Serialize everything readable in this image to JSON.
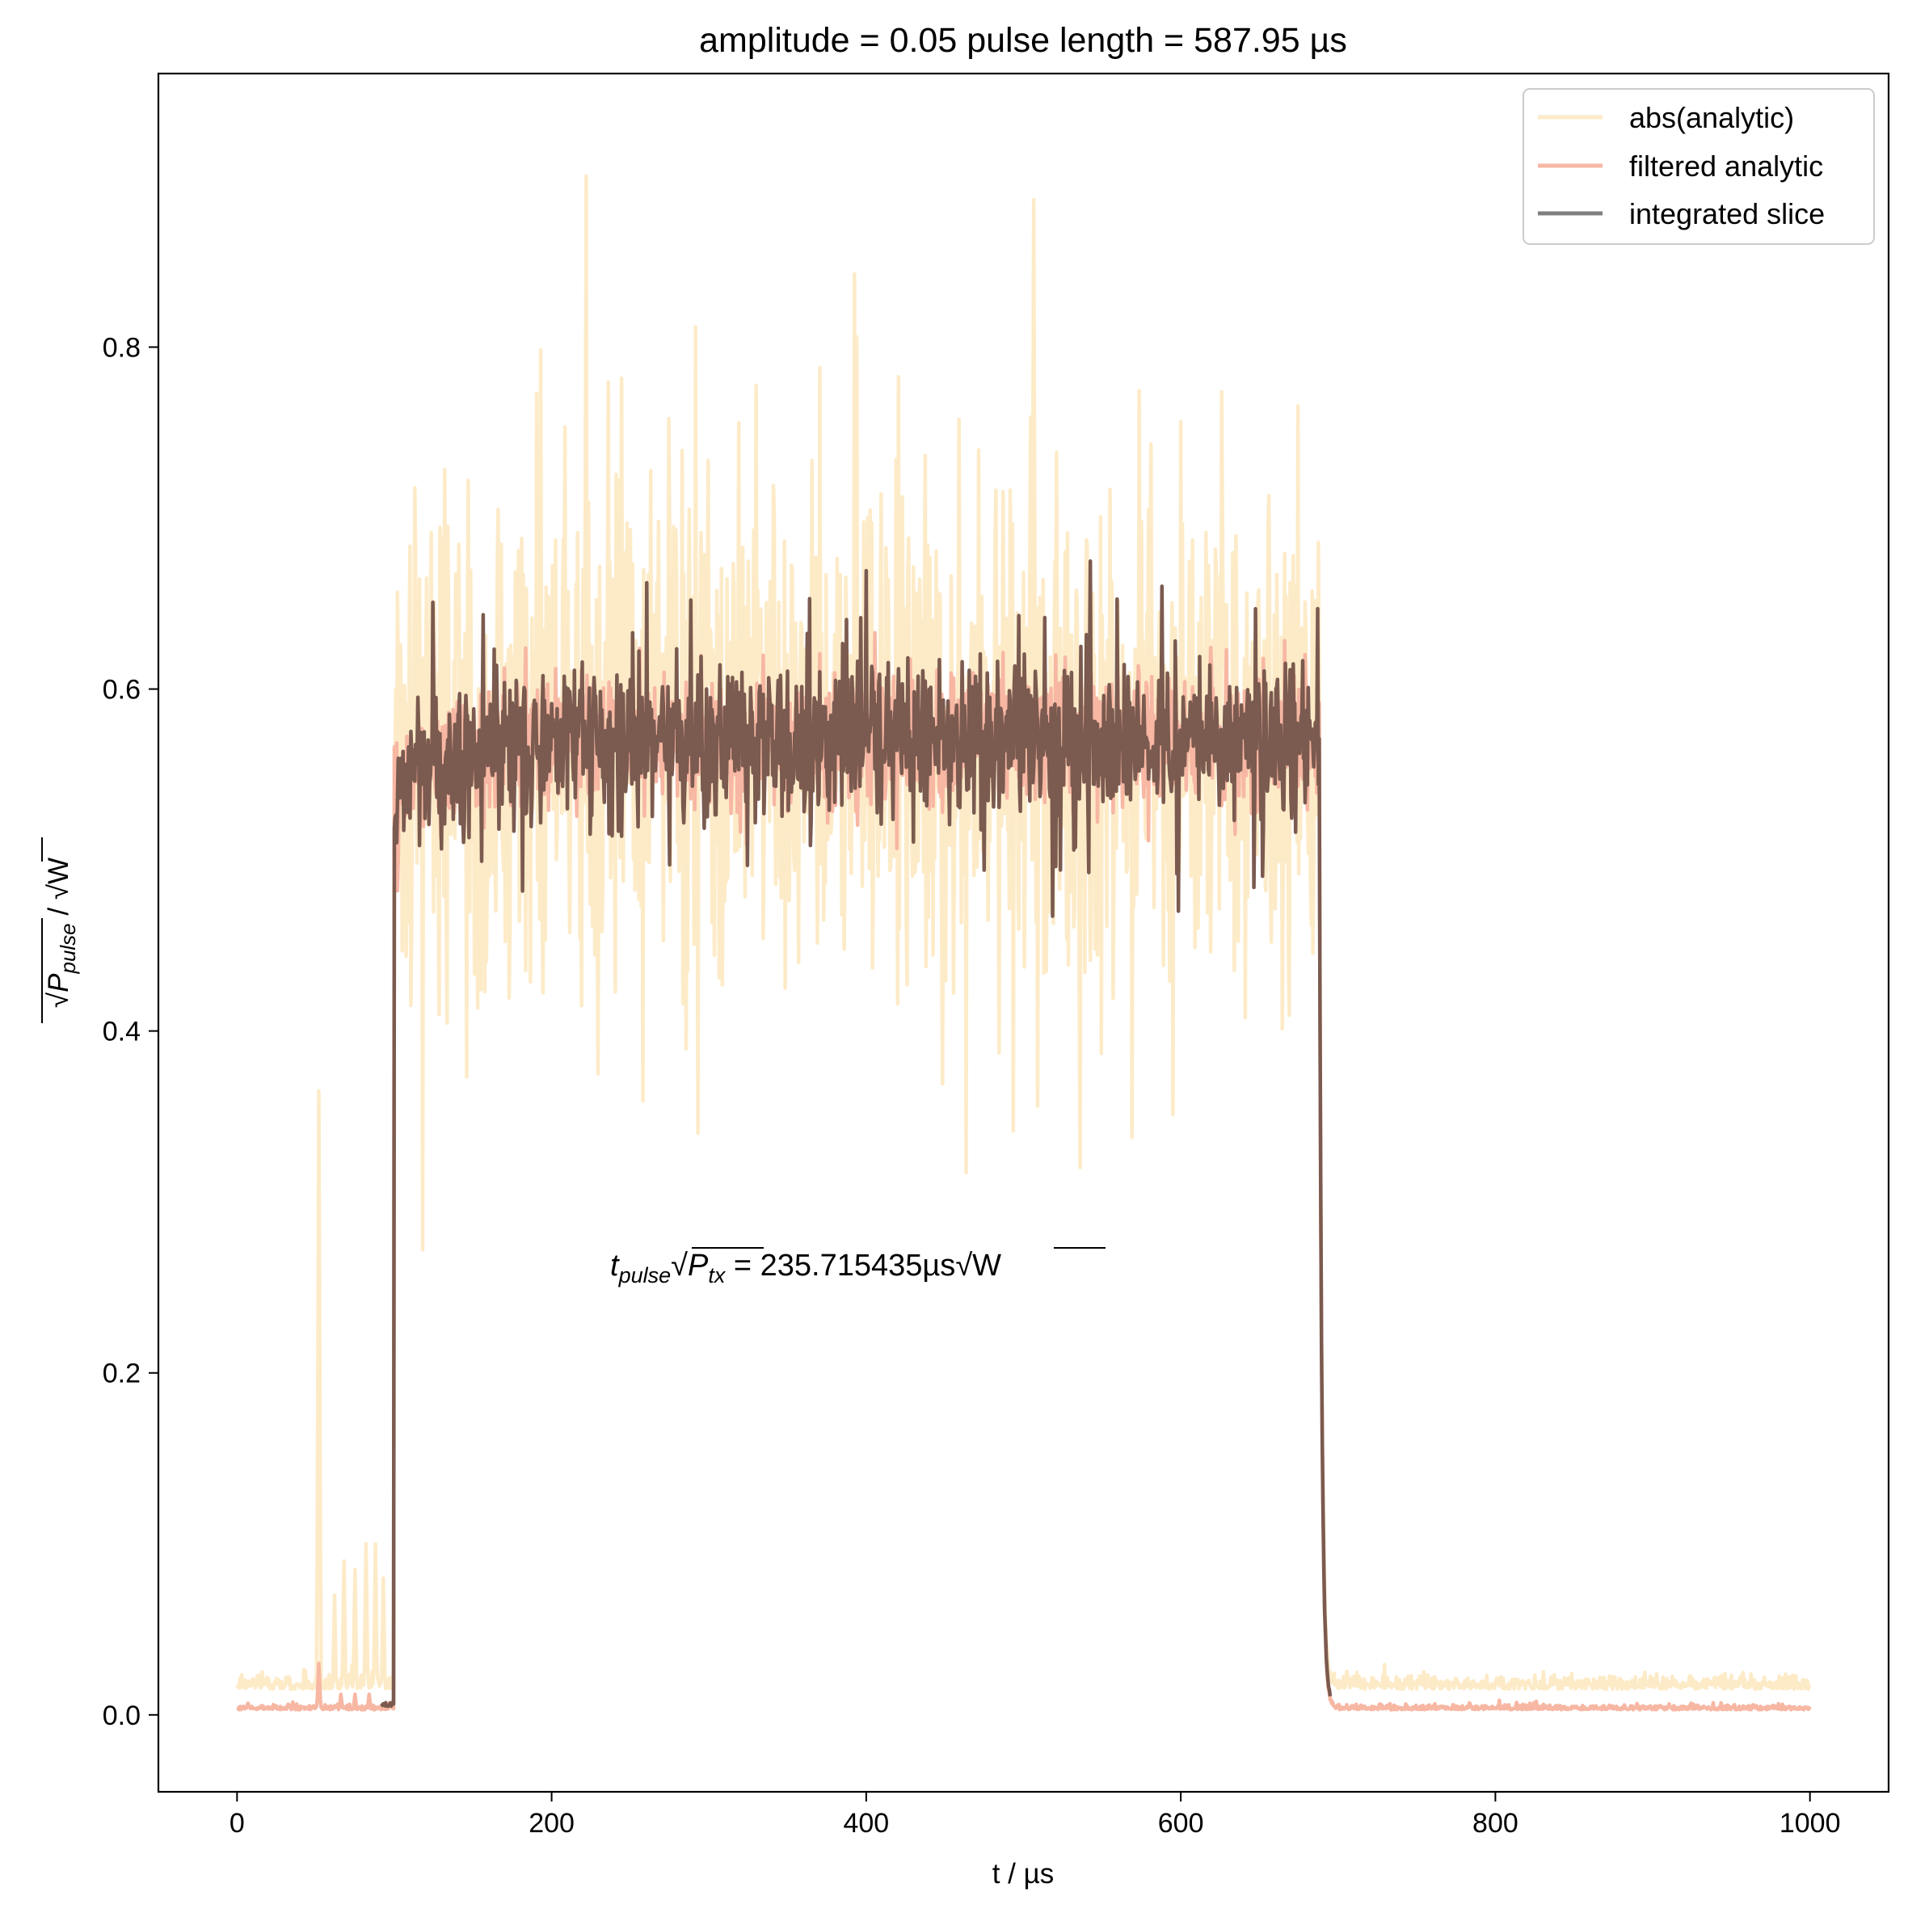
{
  "chart_data": {
    "type": "line",
    "title": "amplitude = 0.05 pulse length = 587.95 µs",
    "xlabel": "t / µs",
    "ylabel": {
      "sqrt": "√",
      "main": "P",
      "sub": "pulse",
      "sep": " / ",
      "unit_sqrt": "√",
      "unit": "W"
    },
    "xlim": [
      -50,
      1050
    ],
    "ylim": [
      -0.045,
      0.96
    ],
    "xticks": [
      0,
      200,
      400,
      600,
      800,
      1000
    ],
    "xtick_labels": [
      "0",
      "200",
      "400",
      "600",
      "800",
      "1000"
    ],
    "yticks": [
      0.0,
      0.2,
      0.4,
      0.6,
      0.8
    ],
    "ytick_labels": [
      "0.0",
      "0.2",
      "0.4",
      "0.6",
      "0.8"
    ],
    "grid": false,
    "legend_position": "top-right",
    "pulse_on": 100,
    "pulse_off": 688,
    "series": [
      {
        "name": "abs(analytic)",
        "color": "#fdebc8",
        "off_level": 0.015,
        "on_level": 0.575,
        "noise_std": 0.075,
        "pre_spikes": [
          [
            52,
            0.365
          ],
          [
            62,
            0.07
          ],
          [
            68,
            0.09
          ],
          [
            75,
            0.085
          ],
          [
            82,
            0.1
          ],
          [
            88,
            0.1
          ],
          [
            93,
            0.08
          ]
        ],
        "max_spike": [
          222,
          0.9
        ]
      },
      {
        "name": "filtered analytic",
        "color": "#f7b7a3",
        "off_level": 0.003,
        "on_level": 0.57,
        "noise_std": 0.02,
        "pre_spikes": [
          [
            52,
            0.03
          ],
          [
            66,
            0.012
          ],
          [
            75,
            0.012
          ],
          [
            84,
            0.012
          ]
        ]
      },
      {
        "name": "integrated slice",
        "color": "#7b5a4f",
        "legend_color": "#808080",
        "off_level": 0.005,
        "on_level": 0.57,
        "noise_std": 0.022,
        "end_peak": [
          687,
          0.647
        ]
      }
    ],
    "annotation": {
      "t": "t",
      "t_sub": "pulse",
      "sqrt": "√",
      "p": "P",
      "p_sub": "tx",
      "equals": " = 235.715435µs",
      "unit_sqrt": "√",
      "unit": "W",
      "x": 235,
      "y": 0.255
    }
  }
}
